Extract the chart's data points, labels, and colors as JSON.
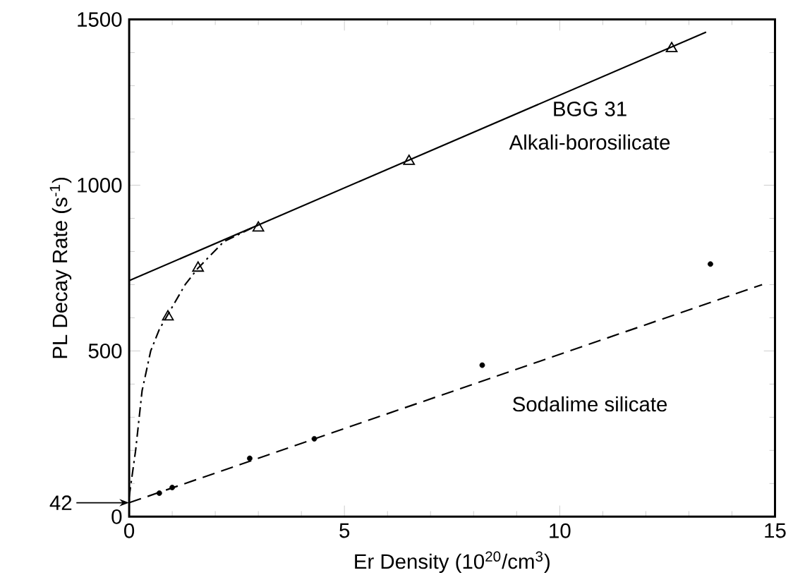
{
  "chart_data": {
    "type": "scatter",
    "xlabel": "Er Density (10$^{20}$/cm$^{3}$)",
    "ylabel": "PL Decay Rate (s$^{-1}$)",
    "xlim": [
      0,
      15
    ],
    "ylim": [
      0,
      1500
    ],
    "xticks": [
      0,
      5,
      10,
      15
    ],
    "yticks": [
      0,
      500,
      1000,
      1500
    ],
    "series": [
      {
        "marker": "triangle",
        "color": "#000000",
        "x": [
          0.9,
          1.6,
          3.0,
          6.5,
          12.6
        ],
        "values": [
          603,
          750,
          871,
          1072,
          1412
        ]
      },
      {
        "marker": "circle",
        "color": "#000000",
        "x": [
          0.7,
          1.0,
          2.8,
          4.3,
          8.2,
          13.5
        ],
        "values": [
          71,
          88,
          176,
          235,
          457,
          762
        ]
      },
      {
        "type": "line",
        "line_style": "solid",
        "color": "#000000",
        "x": [
          0,
          13.4
        ],
        "values": [
          712,
          1462
        ]
      },
      {
        "type": "line",
        "line_style": "dashed",
        "color": "#000000",
        "x": [
          0,
          14.7
        ],
        "values": [
          42,
          700
        ]
      },
      {
        "type": "line",
        "line_style": "dashdot",
        "color": "#000000",
        "x": [
          0,
          0.15,
          0.3,
          0.5,
          0.7,
          0.9,
          1.3,
          1.6,
          2.2,
          3.0
        ],
        "values": [
          60,
          200,
          380,
          500,
          565,
          610,
          700,
          750,
          830,
          880
        ]
      }
    ],
    "annotations": [
      "BGG 31",
      "Alkali-borosilicate",
      "Sodalime silicate",
      {
        "text": "42",
        "x": 0,
        "y": 42
      }
    ],
    "grid": false
  }
}
